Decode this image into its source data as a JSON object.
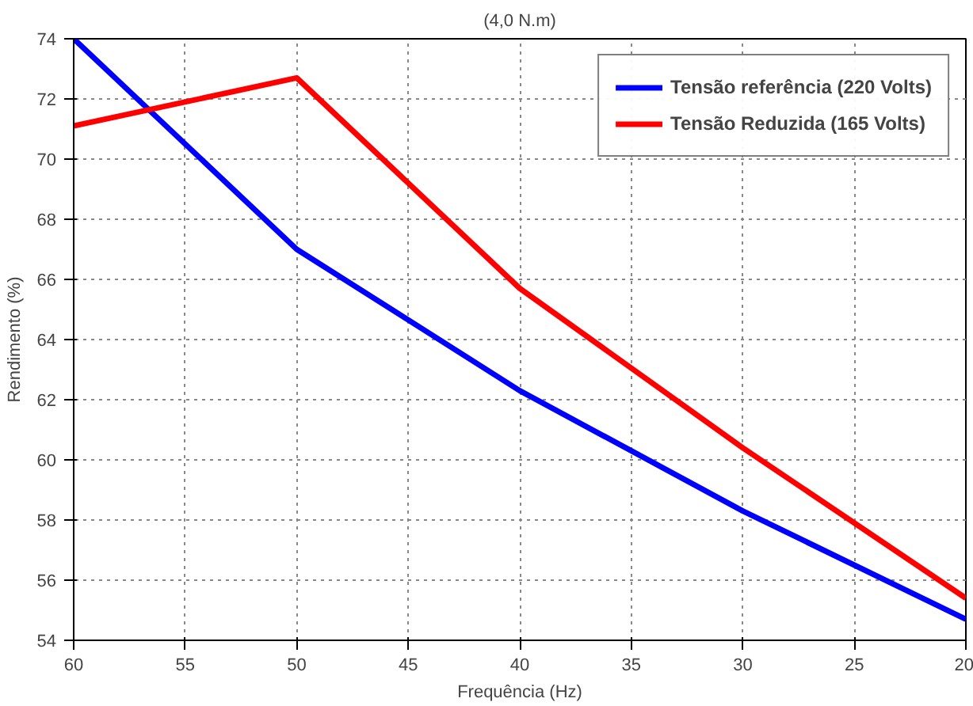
{
  "chart_data": {
    "type": "line",
    "title": "(4,0 N.m)",
    "xlabel": "Frequência (Hz)",
    "ylabel": "Rendimento (%)",
    "x": [
      60,
      50,
      40,
      30,
      20
    ],
    "series": [
      {
        "name": "Tensão referência (220 Volts)",
        "color": "#0000ff",
        "values": [
          74.0,
          67.0,
          62.3,
          58.3,
          54.7
        ]
      },
      {
        "name": "Tensão Reduzida (165 Volts)",
        "color": "#ff0000",
        "values": [
          71.1,
          72.7,
          65.7,
          60.4,
          55.4
        ]
      }
    ],
    "xlim": [
      60,
      20
    ],
    "xticks": [
      60,
      55,
      50,
      45,
      40,
      35,
      30,
      25,
      20
    ],
    "ylim": [
      54,
      74
    ],
    "yticks": [
      54,
      56,
      58,
      60,
      62,
      64,
      66,
      68,
      70,
      72,
      74
    ],
    "grid": true,
    "legend": "top right",
    "line_style": "solid",
    "marker": "none"
  }
}
